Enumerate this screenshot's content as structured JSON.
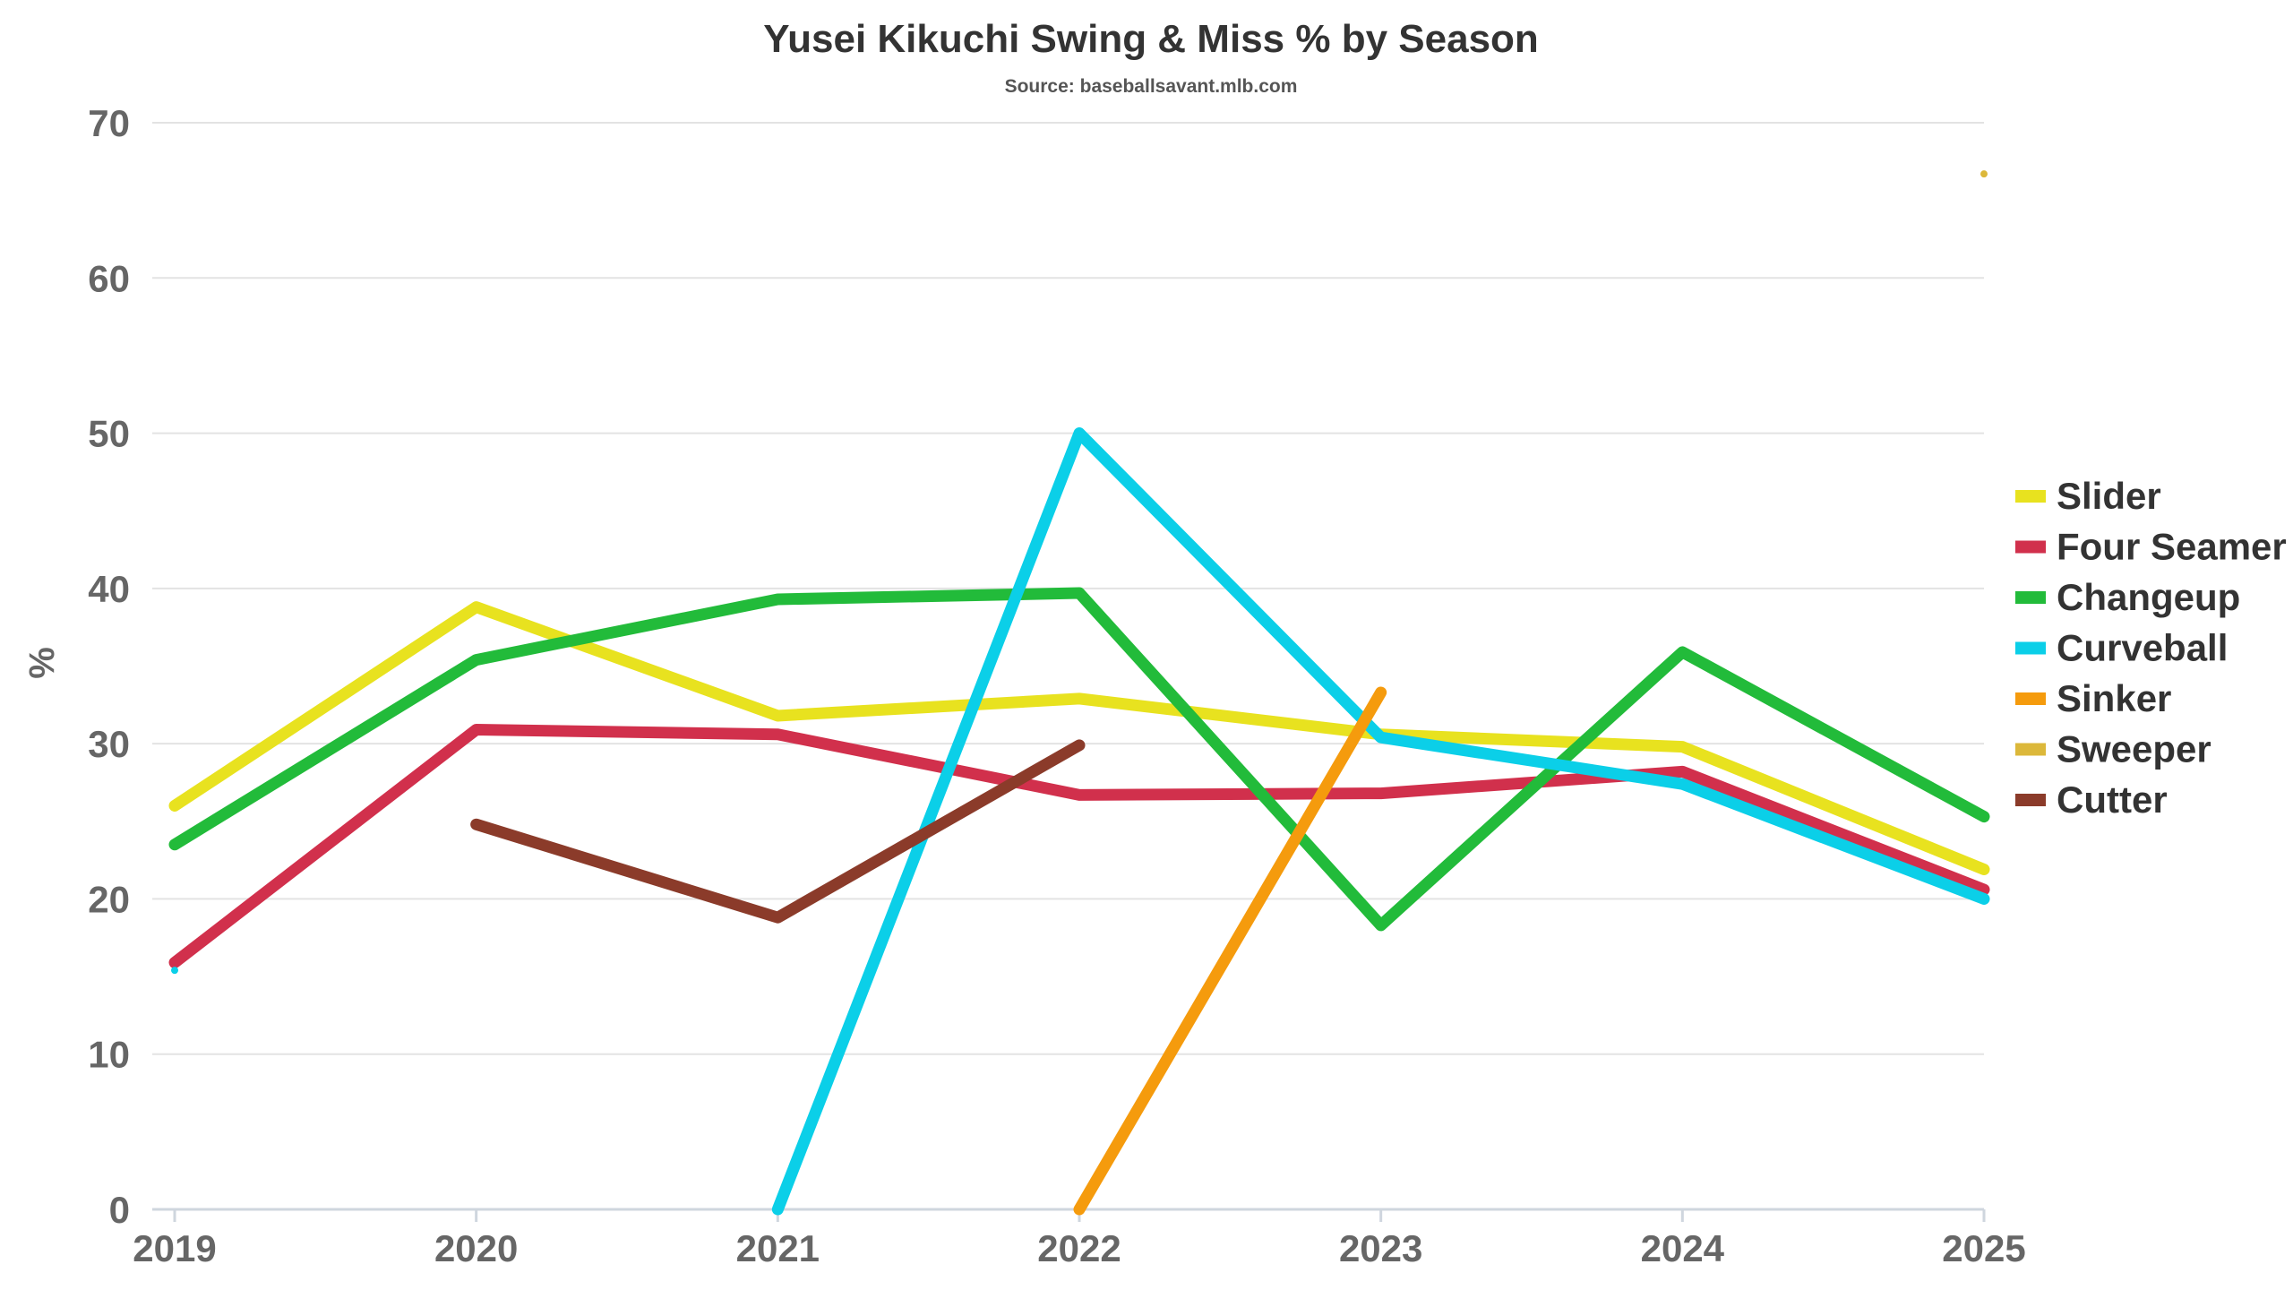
{
  "chart_data": {
    "type": "line",
    "title": "Yusei Kikuchi Swing & Miss % by Season",
    "subtitle": "Source: baseballsavant.mlb.com",
    "xlabel": "",
    "ylabel": "%",
    "x": [
      "2019",
      "2020",
      "2021",
      "2022",
      "2023",
      "2024",
      "2025"
    ],
    "ylim": [
      0,
      70
    ],
    "yticks": [
      "0",
      "10",
      "20",
      "30",
      "40",
      "50",
      "60",
      "70"
    ],
    "grid": true,
    "legend_position": "right",
    "series": [
      {
        "name": "Slider",
        "color": "#e8e21f",
        "values": [
          26.0,
          38.8,
          31.8,
          32.9,
          30.6,
          29.8,
          21.9
        ]
      },
      {
        "name": "Four Seamer",
        "color": "#d1304c",
        "values": [
          15.9,
          30.9,
          30.6,
          26.7,
          26.8,
          28.2,
          20.6
        ]
      },
      {
        "name": "Changeup",
        "color": "#22bb3a",
        "values": [
          23.5,
          35.4,
          39.3,
          39.7,
          18.3,
          35.9,
          25.3
        ]
      },
      {
        "name": "Curveball",
        "color": "#0bcfe8",
        "values": [
          15.4,
          null,
          0.0,
          50.0,
          30.4,
          27.4,
          20.0
        ]
      },
      {
        "name": "Sinker",
        "color": "#f59b0d",
        "values": [
          null,
          null,
          null,
          0.0,
          33.3,
          null,
          null
        ]
      },
      {
        "name": "Sweeper",
        "color": "#dcb83a",
        "values": [
          null,
          null,
          null,
          null,
          null,
          null,
          66.7
        ]
      },
      {
        "name": "Cutter",
        "color": "#8b3b2a",
        "values": [
          null,
          24.8,
          18.8,
          29.9,
          null,
          null,
          null
        ]
      }
    ]
  }
}
